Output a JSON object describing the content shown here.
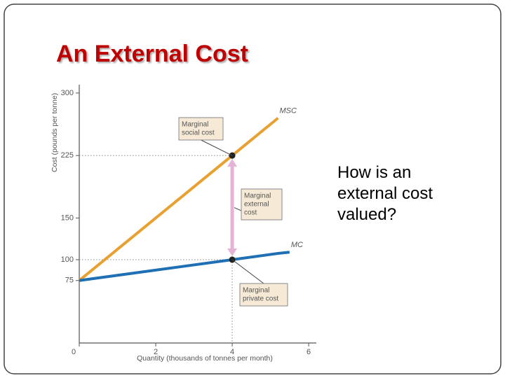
{
  "slide": {
    "title": "An External Cost",
    "question": "How is an external cost valued?"
  },
  "chart_data": {
    "type": "line",
    "x_label": "Quantity (thousands of tonnes per month)",
    "y_label": "Cost (pounds per tonne)",
    "x": [
      0,
      4,
      5.2,
      5.5
    ],
    "series": [
      {
        "name": "MSC",
        "color": "#e8a030",
        "values": [
          75,
          225,
          270,
          null
        ]
      },
      {
        "name": "MC",
        "color": "#1f6fb5",
        "values": [
          75,
          100,
          107.5,
          109
        ]
      }
    ],
    "xlim": [
      0,
      6.2
    ],
    "ylim": [
      0,
      310
    ],
    "xticks": [
      0,
      2,
      4,
      6
    ],
    "yticks": [
      75,
      100,
      150,
      225,
      300
    ],
    "annotations": [
      {
        "lines": [
          "Marginal",
          "social cost"
        ]
      },
      {
        "lines": [
          "Marginal",
          "external",
          "cost"
        ]
      },
      {
        "lines": [
          "Marginal",
          "private cost"
        ]
      }
    ]
  }
}
